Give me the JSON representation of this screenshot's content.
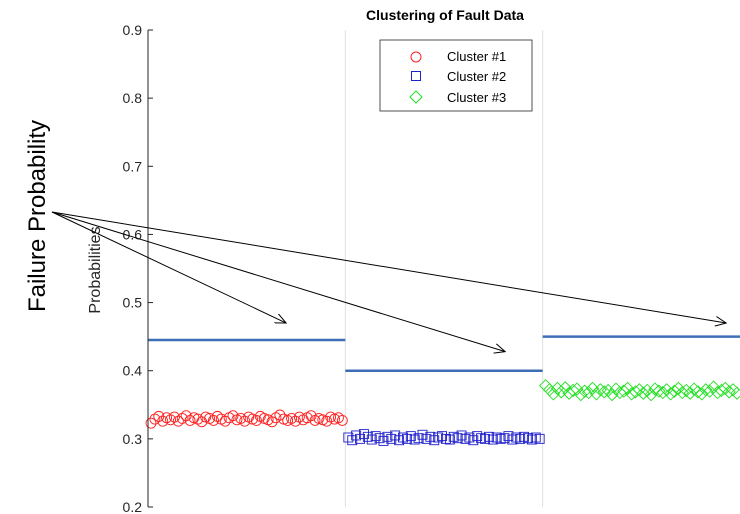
{
  "chart_data": {
    "type": "scatter",
    "title": "Clustering of Fault Data",
    "ylabel": "Probabilities",
    "xlabel": "",
    "ylim": [
      0.2,
      0.9
    ],
    "yticks": [
      "0.2",
      "0.3",
      "0.4",
      "0.5",
      "0.6",
      "0.7",
      "0.8",
      "0.9"
    ],
    "grid": "x-only",
    "legend_placement": "top-center",
    "series": [
      {
        "name": "Cluster #1",
        "marker": "circle",
        "color": "#ff2020",
        "points": [
          0.323,
          0.329,
          0.333,
          0.326,
          0.331,
          0.328,
          0.332,
          0.326,
          0.33,
          0.334,
          0.327,
          0.331,
          0.329,
          0.325,
          0.332,
          0.33,
          0.327,
          0.333,
          0.329,
          0.326,
          0.331,
          0.334,
          0.328,
          0.33,
          0.326,
          0.332,
          0.329,
          0.327,
          0.333,
          0.33,
          0.328,
          0.325,
          0.331,
          0.335,
          0.329,
          0.327,
          0.33,
          0.326,
          0.332,
          0.328,
          0.331,
          0.334,
          0.327,
          0.33,
          0.328,
          0.326,
          0.332,
          0.329,
          0.331,
          0.327
        ]
      },
      {
        "name": "Cluster #2",
        "marker": "square",
        "color": "#2020cc",
        "points": [
          0.302,
          0.298,
          0.305,
          0.3,
          0.307,
          0.303,
          0.299,
          0.304,
          0.301,
          0.297,
          0.303,
          0.3,
          0.305,
          0.298,
          0.302,
          0.3,
          0.304,
          0.299,
          0.301,
          0.306,
          0.3,
          0.303,
          0.298,
          0.302,
          0.304,
          0.3,
          0.299,
          0.303,
          0.301,
          0.305,
          0.3,
          0.302,
          0.298,
          0.304,
          0.301,
          0.3,
          0.303,
          0.299,
          0.302,
          0.3,
          0.301,
          0.304,
          0.299,
          0.302,
          0.3,
          0.303,
          0.301,
          0.299,
          0.302,
          0.3
        ]
      },
      {
        "name": "Cluster #3",
        "marker": "diamond",
        "color": "#20e020",
        "points": [
          0.378,
          0.372,
          0.366,
          0.374,
          0.369,
          0.375,
          0.367,
          0.371,
          0.373,
          0.365,
          0.37,
          0.368,
          0.374,
          0.366,
          0.372,
          0.369,
          0.371,
          0.365,
          0.373,
          0.368,
          0.37,
          0.374,
          0.366,
          0.369,
          0.372,
          0.367,
          0.371,
          0.365,
          0.373,
          0.37,
          0.368,
          0.372,
          0.366,
          0.37,
          0.374,
          0.368,
          0.371,
          0.367,
          0.373,
          0.369,
          0.366,
          0.372,
          0.37,
          0.376,
          0.368,
          0.371,
          0.374,
          0.369,
          0.372,
          0.367
        ]
      }
    ],
    "threshold_lines": [
      {
        "cluster": 1,
        "value": 0.445,
        "color": "#3c6fb6"
      },
      {
        "cluster": 2,
        "value": 0.4,
        "color": "#3c6fb6"
      },
      {
        "cluster": 3,
        "value": 0.45,
        "color": "#3c6fb6"
      }
    ],
    "annotation": {
      "text": "Failure Probability",
      "arrow_targets": [
        {
          "cluster": 1,
          "value": 0.47
        },
        {
          "cluster": 2,
          "value": 0.428
        },
        {
          "cluster": 3,
          "value": 0.47
        }
      ]
    }
  }
}
